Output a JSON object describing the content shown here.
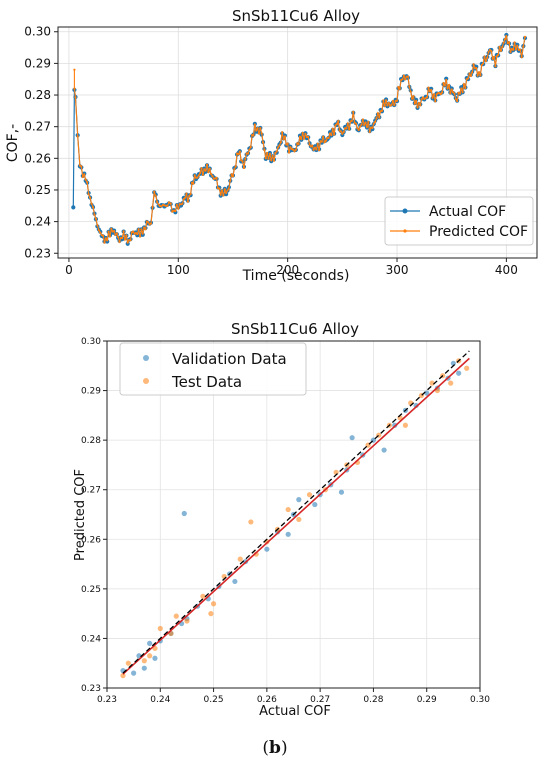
{
  "caption": {
    "open": "(",
    "letter": "b",
    "close": ")"
  },
  "chart_data": [
    {
      "type": "line",
      "title": "SnSb11Cu6 Alloy",
      "xlabel": "Time (seconds)",
      "ylabel": "COF,-",
      "xlim": [
        -10,
        428
      ],
      "ylim": [
        0.2285,
        0.3015
      ],
      "xticks": [
        "0",
        "100",
        "200",
        "300",
        "400"
      ],
      "yticks": [
        "0.23",
        "0.24",
        "0.25",
        "0.26",
        "0.27",
        "0.28",
        "0.29",
        "0.30"
      ],
      "grid": true,
      "legend_position": "lower-right",
      "colors": {
        "actual": "#1f77b4",
        "predicted": "#ff7f0e"
      },
      "keypoints": [
        [
          4,
          0.2445
        ],
        [
          5,
          0.283
        ],
        [
          6,
          0.279
        ],
        [
          8,
          0.2672
        ],
        [
          10,
          0.258
        ],
        [
          14,
          0.2545
        ],
        [
          18,
          0.2498
        ],
        [
          22,
          0.2438
        ],
        [
          26,
          0.2392
        ],
        [
          30,
          0.235
        ],
        [
          35,
          0.2345
        ],
        [
          40,
          0.2378
        ],
        [
          45,
          0.2345
        ],
        [
          50,
          0.2355
        ],
        [
          55,
          0.234
        ],
        [
          60,
          0.237
        ],
        [
          65,
          0.236
        ],
        [
          70,
          0.2385
        ],
        [
          75,
          0.24
        ],
        [
          78,
          0.249
        ],
        [
          82,
          0.2455
        ],
        [
          86,
          0.2445
        ],
        [
          90,
          0.246
        ],
        [
          96,
          0.2435
        ],
        [
          100,
          0.2445
        ],
        [
          105,
          0.247
        ],
        [
          110,
          0.248
        ],
        [
          115,
          0.254
        ],
        [
          120,
          0.255
        ],
        [
          125,
          0.257
        ],
        [
          130,
          0.2555
        ],
        [
          135,
          0.2525
        ],
        [
          140,
          0.2485
        ],
        [
          145,
          0.25
        ],
        [
          150,
          0.255
        ],
        [
          155,
          0.262
        ],
        [
          160,
          0.258
        ],
        [
          165,
          0.263
        ],
        [
          170,
          0.2695
        ],
        [
          175,
          0.269
        ],
        [
          180,
          0.261
        ],
        [
          185,
          0.26
        ],
        [
          190,
          0.2615
        ],
        [
          195,
          0.2675
        ],
        [
          200,
          0.264
        ],
        [
          205,
          0.262
        ],
        [
          210,
          0.265
        ],
        [
          215,
          0.268
        ],
        [
          220,
          0.265
        ],
        [
          225,
          0.2625
        ],
        [
          230,
          0.265
        ],
        [
          235,
          0.266
        ],
        [
          240,
          0.2675
        ],
        [
          245,
          0.271
        ],
        [
          250,
          0.268
        ],
        [
          255,
          0.27
        ],
        [
          260,
          0.273
        ],
        [
          265,
          0.269
        ],
        [
          270,
          0.272
        ],
        [
          275,
          0.269
        ],
        [
          280,
          0.2715
        ],
        [
          285,
          0.275
        ],
        [
          290,
          0.278
        ],
        [
          295,
          0.2765
        ],
        [
          300,
          0.279
        ],
        [
          305,
          0.286
        ],
        [
          310,
          0.285
        ],
        [
          315,
          0.278
        ],
        [
          320,
          0.277
        ],
        [
          325,
          0.279
        ],
        [
          330,
          0.2815
        ],
        [
          335,
          0.279
        ],
        [
          340,
          0.281
        ],
        [
          345,
          0.284
        ],
        [
          350,
          0.281
        ],
        [
          355,
          0.279
        ],
        [
          360,
          0.282
        ],
        [
          365,
          0.285
        ],
        [
          370,
          0.289
        ],
        [
          375,
          0.2865
        ],
        [
          380,
          0.291
        ],
        [
          385,
          0.294
        ],
        [
          390,
          0.2905
        ],
        [
          395,
          0.295
        ],
        [
          400,
          0.298
        ],
        [
          405,
          0.294
        ],
        [
          410,
          0.296
        ],
        [
          414,
          0.292
        ],
        [
          417,
          0.298
        ]
      ],
      "series": [
        {
          "name": "Actual COF"
        },
        {
          "name": "Predicted COF"
        }
      ]
    },
    {
      "type": "scatter",
      "title": "SnSb11Cu6 Alloy",
      "xlabel": "Actual COF",
      "ylabel": "Predicted COF",
      "xlim": [
        0.23,
        0.3
      ],
      "ylim": [
        0.23,
        0.3
      ],
      "xticks": [
        "0.23",
        "0.24",
        "0.25",
        "0.26",
        "0.27",
        "0.28",
        "0.29",
        "0.30"
      ],
      "yticks": [
        "0.23",
        "0.24",
        "0.25",
        "0.26",
        "0.27",
        "0.28",
        "0.29",
        "0.30"
      ],
      "grid": true,
      "legend_position": "top-left",
      "colors": {
        "validation": "#1f77b4",
        "test": "#ff7f0e",
        "fit": "#d62728",
        "ideal": "#000000"
      },
      "ideal_line": [
        [
          0.233,
          0.233
        ],
        [
          0.298,
          0.298
        ]
      ],
      "fit_line": [
        [
          0.233,
          0.2328
        ],
        [
          0.298,
          0.2965
        ]
      ],
      "series": [
        {
          "name": "Validation Data",
          "points": [
            [
              0.233,
              0.2335
            ],
            [
              0.235,
              0.233
            ],
            [
              0.236,
              0.2365
            ],
            [
              0.237,
              0.234
            ],
            [
              0.238,
              0.239
            ],
            [
              0.239,
              0.236
            ],
            [
              0.24,
              0.2395
            ],
            [
              0.242,
              0.241
            ],
            [
              0.244,
              0.243
            ],
            [
              0.2445,
              0.2652
            ],
            [
              0.245,
              0.244
            ],
            [
              0.247,
              0.2465
            ],
            [
              0.249,
              0.248
            ],
            [
              0.251,
              0.2505
            ],
            [
              0.253,
              0.253
            ],
            [
              0.254,
              0.2515
            ],
            [
              0.256,
              0.2555
            ],
            [
              0.26,
              0.258
            ],
            [
              0.262,
              0.2615
            ],
            [
              0.264,
              0.261
            ],
            [
              0.265,
              0.265
            ],
            [
              0.266,
              0.268
            ],
            [
              0.269,
              0.267
            ],
            [
              0.27,
              0.269
            ],
            [
              0.272,
              0.271
            ],
            [
              0.274,
              0.2695
            ],
            [
              0.275,
              0.274
            ],
            [
              0.276,
              0.2805
            ],
            [
              0.278,
              0.277
            ],
            [
              0.28,
              0.28
            ],
            [
              0.282,
              0.278
            ],
            [
              0.284,
              0.283
            ],
            [
              0.286,
              0.286
            ],
            [
              0.288,
              0.287
            ],
            [
              0.29,
              0.2895
            ],
            [
              0.292,
              0.2905
            ],
            [
              0.294,
              0.2925
            ],
            [
              0.295,
              0.2955
            ],
            [
              0.296,
              0.2935
            ]
          ]
        },
        {
          "name": "Test Data",
          "points": [
            [
              0.233,
              0.2325
            ],
            [
              0.234,
              0.235
            ],
            [
              0.237,
              0.2355
            ],
            [
              0.238,
              0.2365
            ],
            [
              0.239,
              0.238
            ],
            [
              0.24,
              0.242
            ],
            [
              0.242,
              0.241
            ],
            [
              0.243,
              0.2445
            ],
            [
              0.245,
              0.2435
            ],
            [
              0.248,
              0.2485
            ],
            [
              0.2495,
              0.245
            ],
            [
              0.25,
              0.247
            ],
            [
              0.252,
              0.2525
            ],
            [
              0.255,
              0.256
            ],
            [
              0.257,
              0.2635
            ],
            [
              0.258,
              0.257
            ],
            [
              0.26,
              0.2595
            ],
            [
              0.262,
              0.262
            ],
            [
              0.264,
              0.266
            ],
            [
              0.266,
              0.264
            ],
            [
              0.268,
              0.269
            ],
            [
              0.271,
              0.27
            ],
            [
              0.273,
              0.2735
            ],
            [
              0.275,
              0.275
            ],
            [
              0.277,
              0.2755
            ],
            [
              0.279,
              0.279
            ],
            [
              0.281,
              0.281
            ],
            [
              0.283,
              0.283
            ],
            [
              0.285,
              0.2845
            ],
            [
              0.286,
              0.283
            ],
            [
              0.287,
              0.2875
            ],
            [
              0.289,
              0.289
            ],
            [
              0.291,
              0.2915
            ],
            [
              0.292,
              0.29
            ],
            [
              0.293,
              0.293
            ],
            [
              0.2945,
              0.2915
            ],
            [
              0.296,
              0.296
            ],
            [
              0.2975,
              0.2945
            ]
          ]
        }
      ]
    }
  ]
}
